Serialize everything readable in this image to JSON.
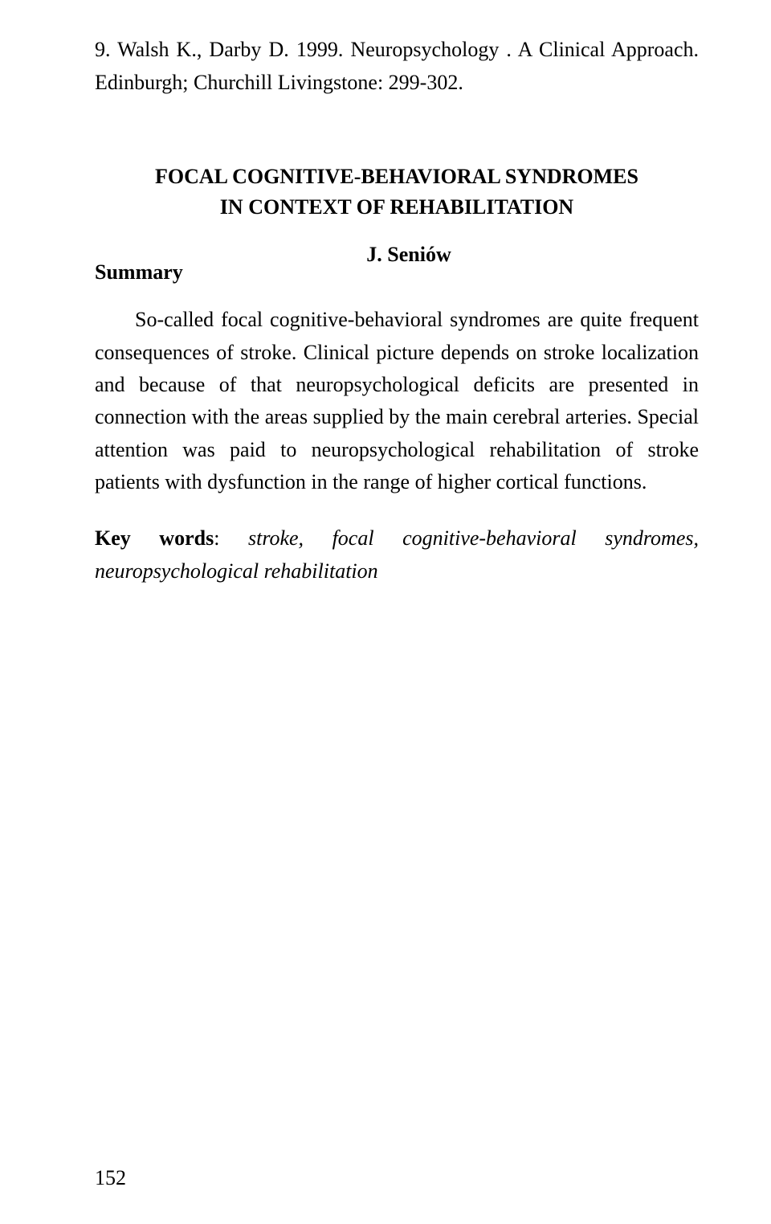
{
  "reference": "9. Walsh K., Darby D. 1999. Neuropsychology . A Clinical Approach. Edinburgh; Churchill Livingstone: 299-302.",
  "title": {
    "line1": "FOCAL COGNITIVE-BEHAVIORAL SYNDROMES",
    "line2": "IN CONTEXT OF REHABILITATION"
  },
  "author": "J. Seniów",
  "summary_heading": "Summary",
  "abstract": "So-called focal cognitive-behavioral syndromes are quite frequent consequences of stroke. Clinical picture depends on stroke localization and because of that neuropsychological deficits are presented in connection with the areas supplied by the main cerebral arteries. Special attention was paid to neuropsychological rehabilitation of stroke patients with dysfunction in the range of higher cortical functions.",
  "keywords": {
    "label": "Key words",
    "colon": ":",
    "text": " stroke, focal cognitive-behavioral syndromes, neuropsychological rehabilitation"
  },
  "page_number": "152"
}
